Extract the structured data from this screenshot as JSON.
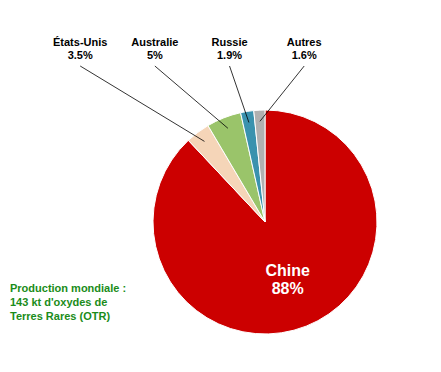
{
  "chart_data": {
    "type": "pie",
    "categories": [
      "Chine",
      "États-Unis",
      "Australie",
      "Russie",
      "Autres"
    ],
    "values": [
      88,
      3.5,
      5,
      1.9,
      1.6
    ],
    "value_labels": [
      "88%",
      "3.5%",
      "5%",
      "1.9%",
      "1.6%"
    ],
    "colors": [
      "#cc0000",
      "#f5d5b8",
      "#9ac46a",
      "#3a92ae",
      "#b0b0b0"
    ],
    "data_labels": true,
    "annotations": [
      {
        "text": "Production mondiale :\n143 kt d'oxydes de\nTerres Rares (OTR)",
        "color": "#1a8c1a"
      }
    ]
  }
}
